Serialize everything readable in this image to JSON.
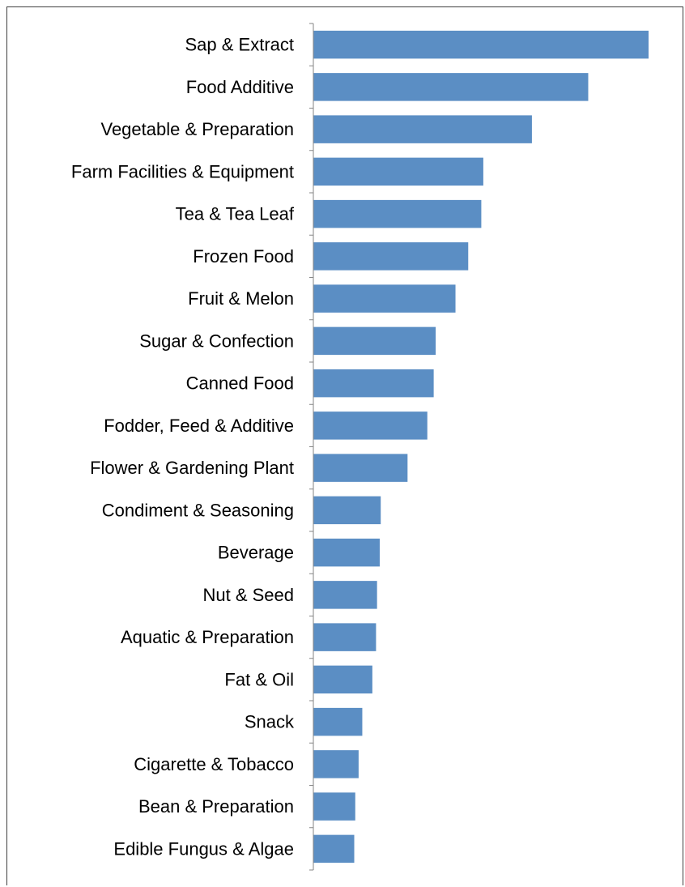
{
  "chart_data": {
    "type": "bar",
    "orientation": "horizontal",
    "title": "",
    "xlabel": "",
    "ylabel": "",
    "categories": [
      "Sap & Extract",
      "Food Additive",
      "Vegetable & Preparation",
      "Farm Facilities & Equipment",
      "Tea & Tea Leaf",
      "Frozen Food",
      "Fruit & Melon",
      "Sugar & Confection",
      "Canned Food",
      "Fodder, Feed & Additive",
      "Flower & Gardening Plant",
      "Condiment & Seasoning",
      "Beverage",
      "Nut & Seed",
      "Aquatic & Preparation",
      "Fat & Oil",
      "Snack",
      "Cigarette & Tobacco",
      "Bean & Preparation",
      "Edible Fungus & Algae"
    ],
    "values": [
      100,
      82,
      65.2,
      50.7,
      50.1,
      46.2,
      42.4,
      36.5,
      35.9,
      34,
      28.1,
      20.1,
      19.8,
      19,
      18.7,
      17.6,
      14.6,
      13.5,
      12.5,
      12.2
    ],
    "xlim": [
      0,
      100
    ],
    "grid": false,
    "legend": "none",
    "bar_color": "#5b8ec4",
    "axis_color": "#868686"
  }
}
